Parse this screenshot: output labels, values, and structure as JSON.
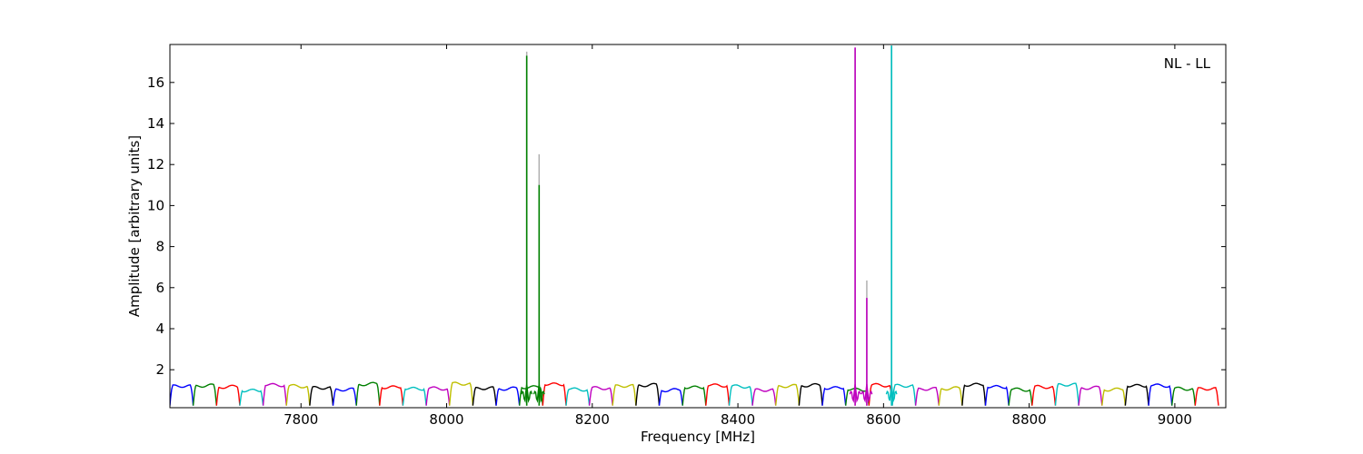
{
  "chart_data": {
    "type": "line",
    "title": "",
    "xlabel": "Frequency [MHz]",
    "ylabel": "Amplitude [arbitrary units]",
    "xlim": [
      7620,
      9070
    ],
    "ylim": [
      0.15,
      17.85
    ],
    "xticks": [
      7800,
      8000,
      8200,
      8400,
      8600,
      8800,
      9000
    ],
    "yticks": [
      2,
      4,
      6,
      8,
      10,
      12,
      14,
      16
    ],
    "grid": false,
    "legend": "none",
    "annotation": "NL - LL",
    "subband": {
      "start": 7620,
      "width": 32,
      "count": 45,
      "typical_level": 1.15,
      "edge_min": 0.25
    },
    "color_cycle": [
      "#0000ff",
      "#008000",
      "#ff0000",
      "#00bfbf",
      "#bf00bf",
      "#bfbf00",
      "#000000"
    ],
    "spikes": [
      {
        "x": 8110,
        "y": 17.3,
        "echo_y": 17.5,
        "color": "#008000"
      },
      {
        "x": 8127,
        "y": 11.0,
        "echo_y": 12.5,
        "color": "#008000"
      },
      {
        "x": 8561,
        "y": 17.7,
        "echo_y": 17.7,
        "color": "#bf00bf"
      },
      {
        "x": 8577,
        "y": 5.5,
        "echo_y": 6.35,
        "color": "#bf00bf"
      },
      {
        "x": 8611,
        "y": 17.8,
        "echo_y": 17.8,
        "color": "#00bfbf"
      }
    ]
  }
}
